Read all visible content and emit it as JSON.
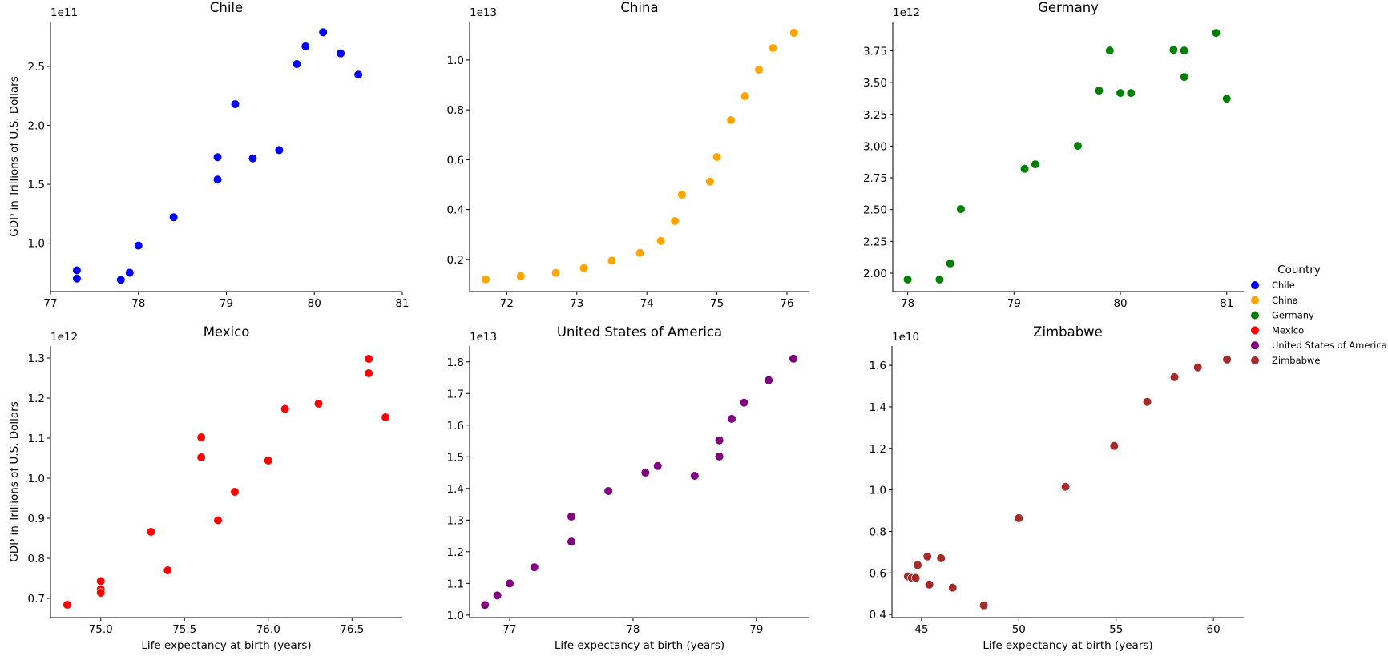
{
  "chart_data": [
    {
      "type": "scatter",
      "title": "Chile",
      "xlabel": "",
      "ylabel": "GDP in Trillions of U.S. Dollars",
      "offset_text": "1e11",
      "color": "#0000ff",
      "xlim": [
        77,
        81
      ],
      "ylim": [
        0.59,
        2.88
      ],
      "xticks": [
        77,
        78,
        79,
        80,
        81
      ],
      "xtick_labels": [
        "77",
        "78",
        "79",
        "80",
        "81"
      ],
      "yticks": [
        1.0,
        1.5,
        2.0,
        2.5
      ],
      "ytick_labels": [
        "1.0",
        "1.5",
        "2.0",
        "2.5"
      ],
      "x": [
        77.3,
        77.3,
        77.8,
        77.9,
        78.0,
        78.4,
        78.9,
        78.9,
        79.1,
        79.3,
        79.6,
        79.8,
        79.9,
        80.1,
        80.3,
        80.5
      ],
      "y": [
        0.77,
        0.7,
        0.69,
        0.75,
        0.98,
        1.22,
        1.73,
        1.54,
        2.18,
        1.72,
        1.79,
        2.52,
        2.67,
        2.79,
        2.61,
        2.43
      ]
    },
    {
      "type": "scatter",
      "title": "China",
      "xlabel": "",
      "ylabel": "",
      "offset_text": "1e13",
      "color": "#ffa500",
      "xlim": [
        71.47,
        76.32
      ],
      "ylim": [
        0.071,
        1.154
      ],
      "xticks": [
        72,
        73,
        74,
        75,
        76
      ],
      "xtick_labels": [
        "72",
        "73",
        "74",
        "75",
        "76"
      ],
      "yticks": [
        0.2,
        0.4,
        0.6,
        0.8,
        1.0
      ],
      "ytick_labels": [
        "0.2",
        "0.4",
        "0.6",
        "0.8",
        "1.0"
      ],
      "x": [
        71.7,
        72.2,
        72.7,
        73.1,
        73.5,
        73.9,
        74.2,
        74.4,
        74.5,
        74.9,
        75.0,
        75.2,
        75.4,
        75.6,
        75.8,
        76.1
      ],
      "y": [
        0.12,
        0.133,
        0.146,
        0.165,
        0.195,
        0.226,
        0.274,
        0.354,
        0.46,
        0.512,
        0.611,
        0.759,
        0.855,
        0.961,
        1.048,
        1.109
      ]
    },
    {
      "type": "scatter",
      "title": "Germany",
      "xlabel": "",
      "ylabel": "",
      "offset_text": "1e12",
      "color": "#008000",
      "xlim": [
        77.86,
        81.16
      ],
      "ylim": [
        1.855,
        3.98
      ],
      "xticks": [
        78,
        79,
        80,
        81
      ],
      "xtick_labels": [
        "78",
        "79",
        "80",
        "81"
      ],
      "yticks": [
        2.0,
        2.25,
        2.5,
        2.75,
        3.0,
        3.25,
        3.5,
        3.75
      ],
      "ytick_labels": [
        "2.00",
        "2.25",
        "2.50",
        "2.75",
        "3.00",
        "3.25",
        "3.50",
        "3.75"
      ],
      "x": [
        78.0,
        78.3,
        78.4,
        78.5,
        79.1,
        79.2,
        79.6,
        79.8,
        79.9,
        80.0,
        80.1,
        80.5,
        80.6,
        80.6,
        80.9,
        81.0
      ],
      "y": [
        1.95,
        1.95,
        2.076,
        2.504,
        2.821,
        2.857,
        3.002,
        3.437,
        3.752,
        3.418,
        3.418,
        3.758,
        3.752,
        3.544,
        3.891,
        3.374
      ]
    },
    {
      "type": "scatter",
      "title": "Mexico",
      "xlabel": "Life expectancy at birth (years)",
      "ylabel": "GDP in Trillions of U.S. Dollars",
      "offset_text": "1e12",
      "color": "#ff0000",
      "xlim": [
        74.7,
        76.8
      ],
      "ylim": [
        0.652,
        1.33
      ],
      "xticks": [
        75.0,
        75.5,
        76.0,
        76.5
      ],
      "xtick_labels": [
        "75.0",
        "75.5",
        "76.0",
        "76.5"
      ],
      "yticks": [
        0.7,
        0.8,
        0.9,
        1.0,
        1.1,
        1.2,
        1.3
      ],
      "ytick_labels": [
        "0.7",
        "0.8",
        "0.9",
        "1.0",
        "1.1",
        "1.2",
        "1.3"
      ],
      "x": [
        74.8,
        75.0,
        75.0,
        75.0,
        75.3,
        75.4,
        75.6,
        75.6,
        75.7,
        75.8,
        76.0,
        76.1,
        76.3,
        76.6,
        76.6,
        76.7
      ],
      "y": [
        0.684,
        0.743,
        0.723,
        0.714,
        0.866,
        0.77,
        1.102,
        1.052,
        0.895,
        0.966,
        1.044,
        1.173,
        1.186,
        1.298,
        1.262,
        1.152
      ]
    },
    {
      "type": "scatter",
      "title": "United States of America",
      "xlabel": "Life expectancy at birth (years)",
      "ylabel": "",
      "offset_text": "1e13",
      "color": "#800080",
      "xlim": [
        76.675,
        79.43
      ],
      "ylim": [
        0.992,
        1.85
      ],
      "xticks": [
        77,
        78,
        79
      ],
      "xtick_labels": [
        "77",
        "78",
        "79"
      ],
      "yticks": [
        1.0,
        1.1,
        1.2,
        1.3,
        1.4,
        1.5,
        1.6,
        1.7,
        1.8
      ],
      "ytick_labels": [
        "1.0",
        "1.1",
        "1.2",
        "1.3",
        "1.4",
        "1.5",
        "1.6",
        "1.7",
        "1.8"
      ],
      "x": [
        76.8,
        76.9,
        77.0,
        77.2,
        77.5,
        77.5,
        77.8,
        78.1,
        78.2,
        78.5,
        78.7,
        78.7,
        78.8,
        78.9,
        79.1,
        79.3
      ],
      "y": [
        1.032,
        1.062,
        1.1,
        1.151,
        1.311,
        1.232,
        1.392,
        1.45,
        1.471,
        1.44,
        1.552,
        1.501,
        1.62,
        1.671,
        1.742,
        1.81
      ]
    },
    {
      "type": "scatter",
      "title": "Zimbabwe",
      "xlabel": "Life expectancy at birth (years)",
      "ylabel": "",
      "offset_text": "1e10",
      "color": "#a52a2a",
      "xlim": [
        43.48,
        61.56
      ],
      "ylim": [
        0.385,
        1.693
      ],
      "xticks": [
        45,
        50,
        55,
        60
      ],
      "xtick_labels": [
        "45",
        "50",
        "55",
        "60"
      ],
      "yticks": [
        0.4,
        0.6,
        0.8,
        1.0,
        1.2,
        1.4,
        1.6
      ],
      "ytick_labels": [
        "0.4",
        "0.6",
        "0.8",
        "1.0",
        "1.2",
        "1.4",
        "1.6"
      ],
      "x": [
        44.3,
        44.5,
        44.7,
        44.8,
        45.3,
        45.4,
        46.0,
        46.6,
        48.2,
        50.0,
        52.4,
        54.9,
        56.6,
        58.0,
        59.2,
        60.7
      ],
      "y": [
        0.583,
        0.576,
        0.576,
        0.638,
        0.679,
        0.544,
        0.671,
        0.529,
        0.444,
        0.864,
        1.015,
        1.212,
        1.424,
        1.543,
        1.59,
        1.628
      ]
    }
  ],
  "legend": {
    "title": "Country",
    "placement": "right",
    "items": [
      {
        "label": "Chile",
        "color": "#0000ff"
      },
      {
        "label": "China",
        "color": "#ffa500"
      },
      {
        "label": "Germany",
        "color": "#008000"
      },
      {
        "label": "Mexico",
        "color": "#ff0000"
      },
      {
        "label": "United States of America",
        "color": "#800080"
      },
      {
        "label": "Zimbabwe",
        "color": "#a52a2a"
      }
    ]
  }
}
